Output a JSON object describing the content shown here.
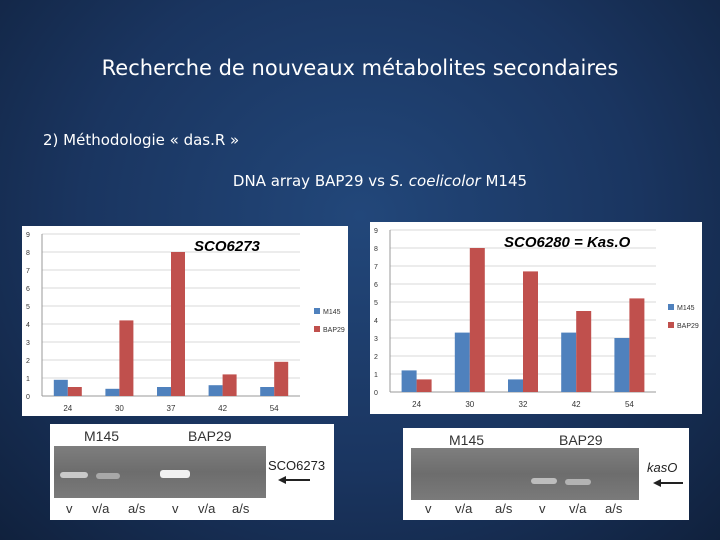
{
  "slide": {
    "title": "Recherche de nouveaux métabolites secondaires",
    "subtitle": "2) Méthodologie « das.R »",
    "caption_prefix": "DNA array BAP29 vs ",
    "caption_italic": "S. coelicolor",
    "caption_suffix": " M145"
  },
  "colors": {
    "m145": "#4f81bd",
    "bap29": "#c0504d"
  },
  "chart_data": [
    {
      "type": "bar",
      "title": "SCO6273",
      "categories": [
        "24",
        "30",
        "37",
        "42",
        "54"
      ],
      "series": [
        {
          "name": "M145",
          "values": [
            0.9,
            0.4,
            0.5,
            0.6,
            0.5
          ]
        },
        {
          "name": "BAP29",
          "values": [
            0.5,
            4.2,
            8.0,
            1.2,
            1.9
          ]
        }
      ],
      "yticks": [
        "0",
        "1",
        "2",
        "3",
        "4",
        "5",
        "6",
        "7",
        "8",
        "9"
      ],
      "ylim": [
        0,
        9
      ],
      "grid": true,
      "legend": "right"
    },
    {
      "type": "bar",
      "title": "SCO6280 = Kas.O",
      "categories": [
        "24",
        "30",
        "32",
        "42",
        "54"
      ],
      "series": [
        {
          "name": "M145",
          "values": [
            1.2,
            3.3,
            0.7,
            3.3,
            3.0
          ]
        },
        {
          "name": "BAP29",
          "values": [
            0.7,
            8.0,
            6.7,
            4.5,
            5.2
          ]
        }
      ],
      "yticks": [
        "0",
        "1",
        "2",
        "3",
        "4",
        "5",
        "6",
        "7",
        "8",
        "9"
      ],
      "ylim": [
        0,
        9
      ],
      "grid": true,
      "legend": "right"
    }
  ],
  "gels": [
    {
      "strain_a": "M145",
      "strain_b": "BAP29",
      "lanes": [
        "v",
        "v/a",
        "a/s",
        "v",
        "v/a",
        "a/s"
      ],
      "gene": "SCO6273"
    },
    {
      "strain_a": "M145",
      "strain_b": "BAP29",
      "lanes": [
        "v",
        "v/a",
        "a/s",
        "v",
        "v/a",
        "a/s"
      ],
      "gene": "kasO"
    }
  ]
}
